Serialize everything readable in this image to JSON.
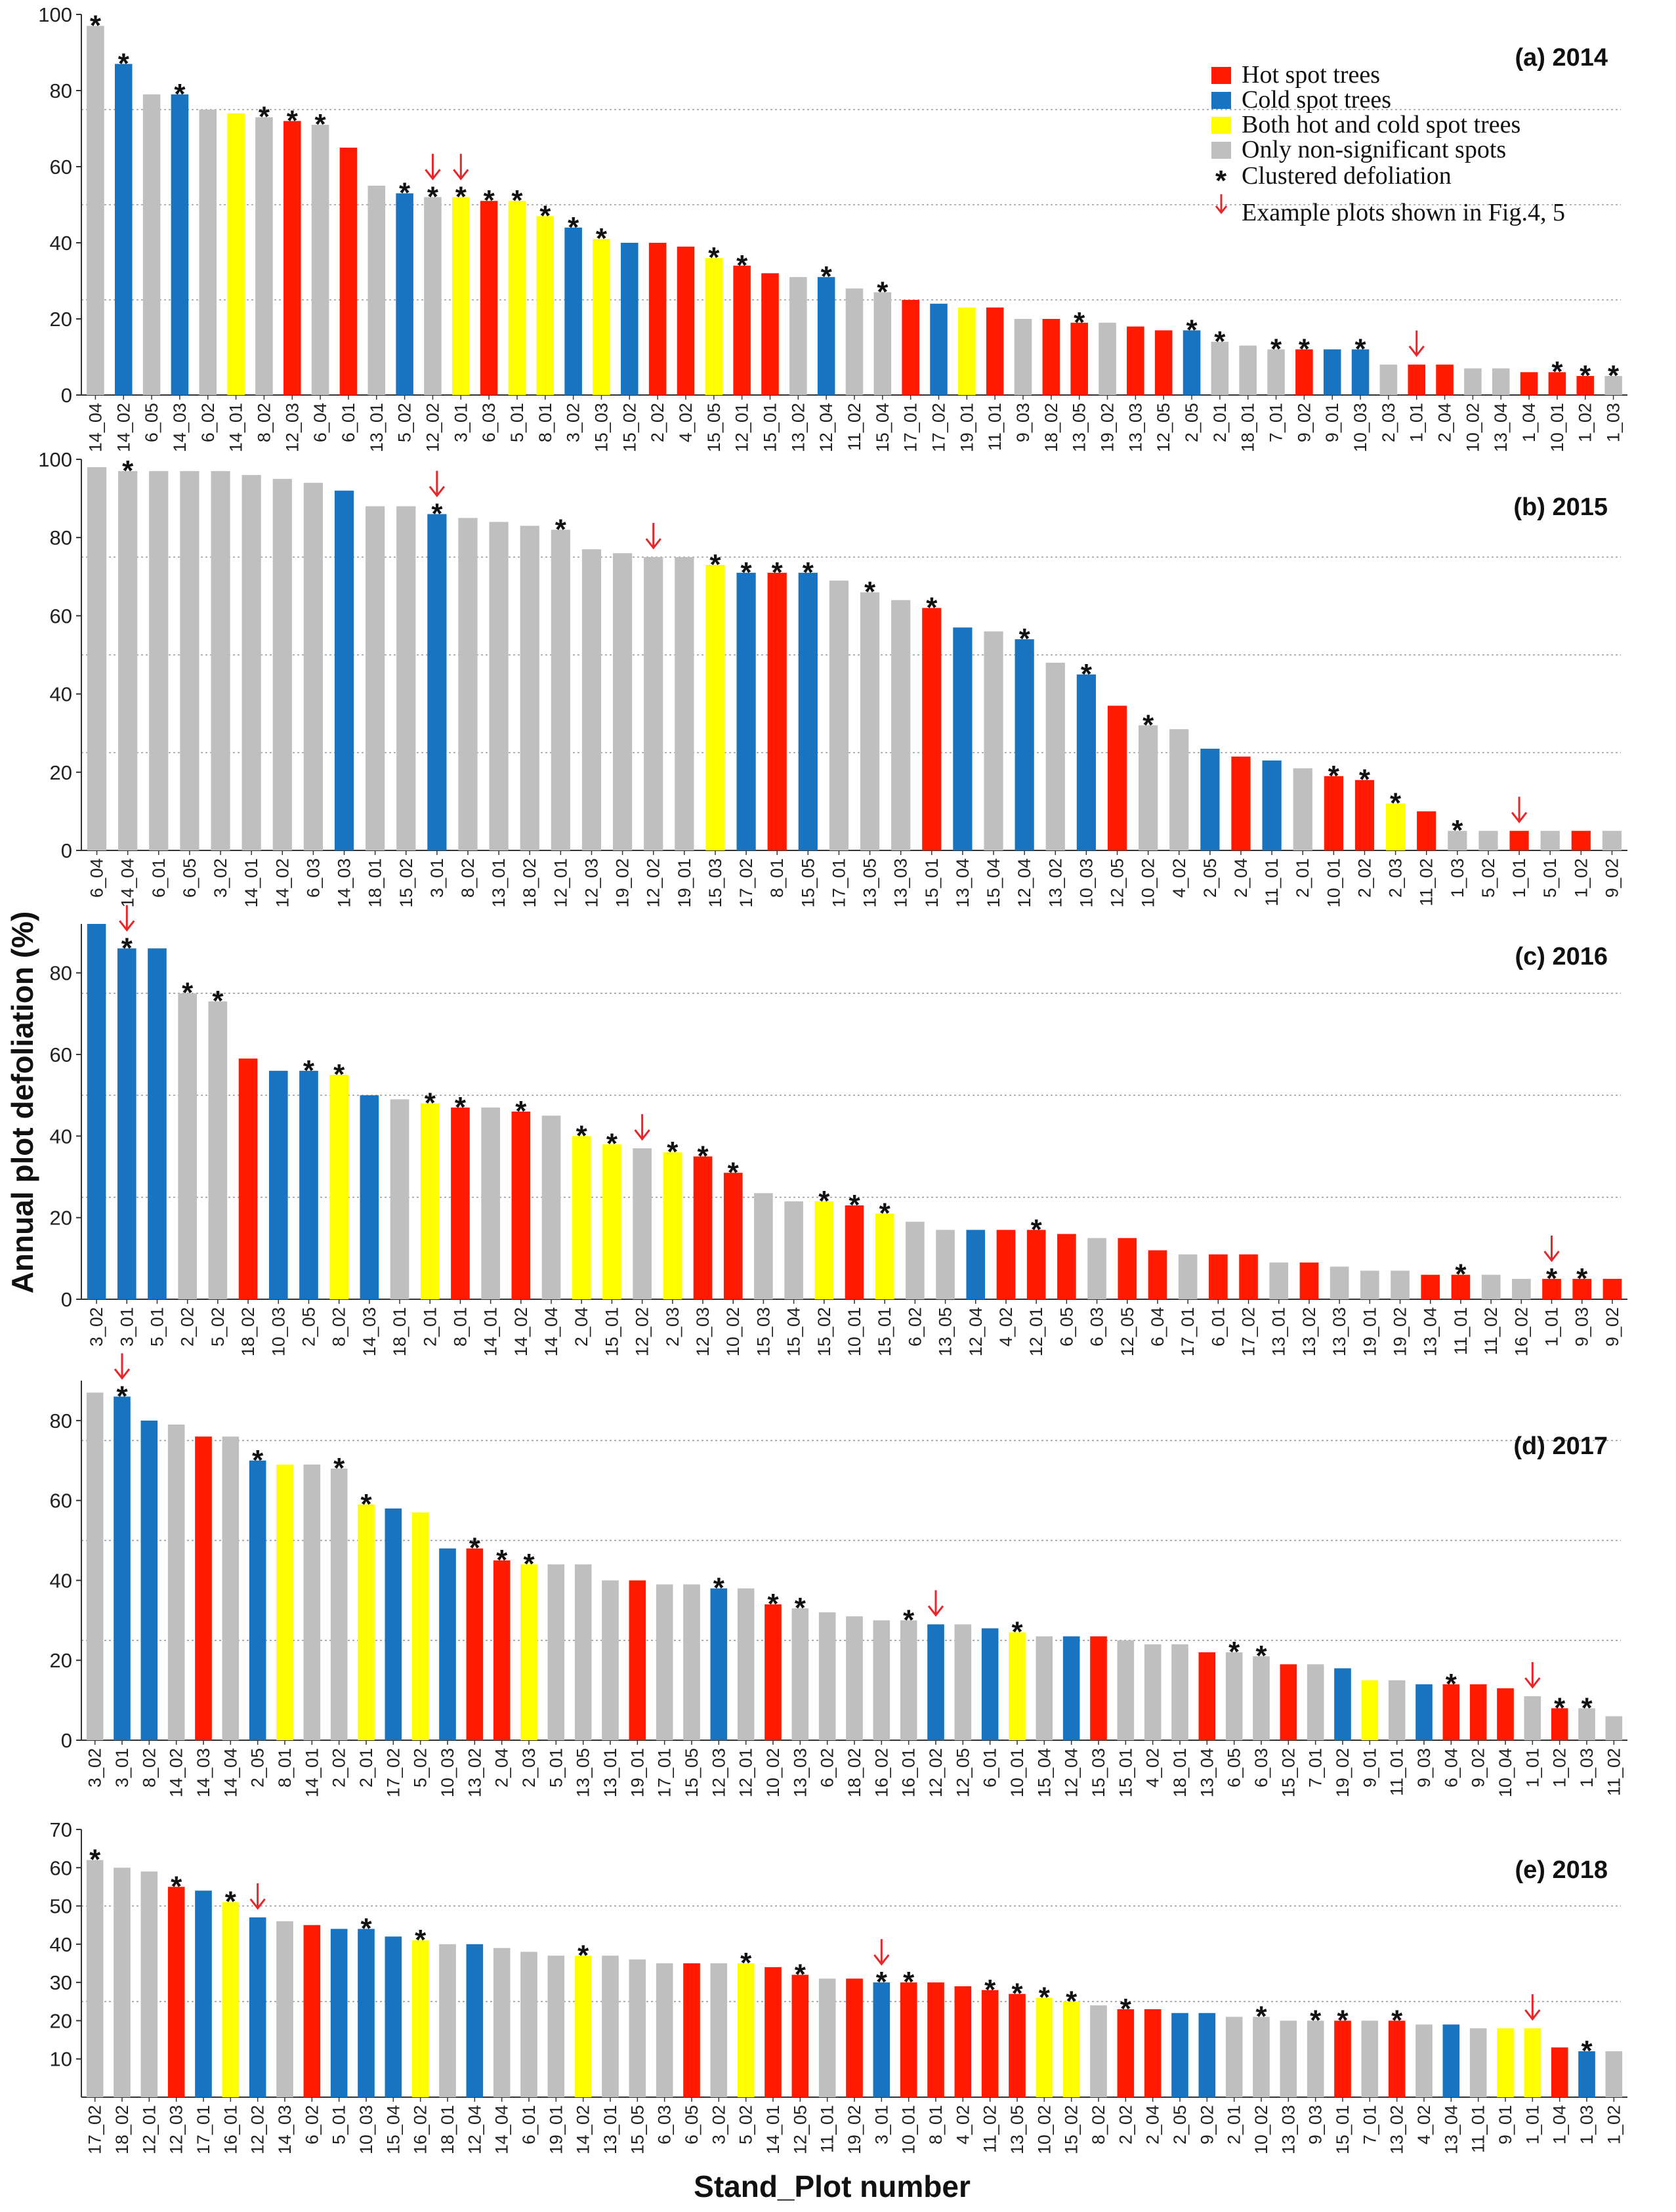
{
  "figure": {
    "ylabel": "Annual plot defoliation (%)",
    "xlabel": "Stand_Plot number"
  },
  "legend": {
    "items": [
      {
        "key": "hot",
        "label": "Hot spot trees",
        "color": "#ff1a00"
      },
      {
        "key": "cold",
        "label": "Cold spot trees",
        "color": "#1874c0"
      },
      {
        "key": "both",
        "label": "Both hot and cold spot trees",
        "color": "#ffff00"
      },
      {
        "key": "none",
        "label": "Only non-significant spots",
        "color": "#bfbfbf"
      }
    ],
    "star_label": "Clustered defoliation",
    "arrow_label": "Example plots shown in Fig.4, 5"
  },
  "colors": {
    "hot": "#ff1a00",
    "cold": "#1874c0",
    "both": "#ffff00",
    "none": "#bfbfbf",
    "arrow": "#e8262a",
    "grid": "#9a9a9a"
  },
  "chart_data": [
    {
      "type": "bar",
      "title": "(a) 2014",
      "xlabel": "Stand_Plot number",
      "ylabel": "Annual plot defoliation (%)",
      "ylim": [
        0,
        100
      ],
      "yticks": [
        0,
        20,
        40,
        60,
        80,
        100
      ],
      "gridlines": [
        25,
        50,
        75
      ],
      "categories": [
        "14_04",
        "14_02",
        "6_05",
        "14_03",
        "6_02",
        "14_01",
        "8_02",
        "12_03",
        "6_04",
        "6_01",
        "13_01",
        "5_02",
        "12_02",
        "3_01",
        "6_03",
        "5_01",
        "8_01",
        "3_02",
        "15_03",
        "15_02",
        "2_02",
        "4_02",
        "15_05",
        "12_01",
        "15_01",
        "13_02",
        "12_04",
        "11_02",
        "15_04",
        "17_01",
        "17_02",
        "19_01",
        "11_01",
        "9_03",
        "18_02",
        "13_05",
        "19_02",
        "13_03",
        "12_05",
        "2_05",
        "2_01",
        "18_01",
        "7_01",
        "9_02",
        "9_01",
        "10_03",
        "2_03",
        "1_01",
        "2_04",
        "10_02",
        "13_04",
        "1_04",
        "10_01",
        "1_02",
        "1_03"
      ],
      "values": [
        97,
        87,
        79,
        79,
        75,
        74,
        73,
        72,
        71,
        65,
        55,
        53,
        52,
        52,
        51,
        51,
        47,
        44,
        41,
        40,
        40,
        39,
        36,
        34,
        32,
        31,
        31,
        28,
        27,
        25,
        24,
        23,
        23,
        20,
        20,
        19,
        19,
        18,
        17,
        17,
        14,
        13,
        12,
        12,
        12,
        12,
        8,
        8,
        8,
        7,
        7,
        6,
        6,
        5,
        5
      ],
      "groups": [
        "none",
        "cold",
        "none",
        "cold",
        "none",
        "both",
        "none",
        "hot",
        "none",
        "hot",
        "none",
        "cold",
        "none",
        "both",
        "hot",
        "both",
        "both",
        "cold",
        "both",
        "cold",
        "hot",
        "hot",
        "both",
        "hot",
        "hot",
        "none",
        "cold",
        "none",
        "none",
        "hot",
        "cold",
        "both",
        "hot",
        "none",
        "hot",
        "hot",
        "none",
        "hot",
        "hot",
        "cold",
        "none",
        "none",
        "none",
        "hot",
        "cold",
        "cold",
        "none",
        "hot",
        "hot",
        "none",
        "none",
        "hot",
        "hot",
        "hot",
        "none"
      ],
      "clustered": [
        "14_04",
        "14_02",
        "14_03",
        "8_02",
        "12_03",
        "6_04",
        "5_02",
        "12_02",
        "3_01",
        "6_03",
        "5_01",
        "8_01",
        "3_02",
        "15_03",
        "15_05",
        "12_01",
        "12_04",
        "15_04",
        "13_05",
        "2_05",
        "2_01",
        "7_01",
        "9_02",
        "10_03",
        "10_01",
        "1_02",
        "1_03"
      ],
      "example_plots": [
        "12_02",
        "3_01",
        "1_01"
      ]
    },
    {
      "type": "bar",
      "title": "(b) 2015",
      "xlabel": "Stand_Plot number",
      "ylabel": "Annual plot defoliation (%)",
      "ylim": [
        0,
        100
      ],
      "yticks": [
        0,
        20,
        40,
        60,
        80,
        100
      ],
      "gridlines": [
        25,
        50,
        75
      ],
      "categories": [
        "6_04",
        "14_04",
        "6_01",
        "6_05",
        "3_02",
        "14_01",
        "14_02",
        "6_03",
        "14_03",
        "18_01",
        "15_02",
        "3_01",
        "8_02",
        "13_01",
        "18_02",
        "12_01",
        "12_03",
        "19_02",
        "12_02",
        "19_01",
        "15_03",
        "17_02",
        "8_01",
        "15_05",
        "17_01",
        "13_05",
        "13_03",
        "15_01",
        "13_04",
        "15_04",
        "12_04",
        "13_02",
        "10_03",
        "12_05",
        "10_02",
        "4_02",
        "2_05",
        "2_04",
        "11_01",
        "2_01",
        "10_01",
        "2_02",
        "2_03",
        "11_02",
        "1_03",
        "5_02",
        "1_01",
        "5_01",
        "1_02",
        "9_02"
      ],
      "values": [
        98,
        97,
        97,
        97,
        97,
        96,
        95,
        94,
        92,
        88,
        88,
        86,
        85,
        84,
        83,
        82,
        77,
        76,
        75,
        75,
        73,
        71,
        71,
        71,
        69,
        66,
        64,
        62,
        57,
        56,
        54,
        48,
        45,
        37,
        32,
        31,
        26,
        24,
        23,
        21,
        19,
        18,
        12,
        10,
        5,
        5,
        5,
        5,
        5,
        5
      ],
      "groups": [
        "none",
        "none",
        "none",
        "none",
        "none",
        "none",
        "none",
        "none",
        "cold",
        "none",
        "none",
        "cold",
        "none",
        "none",
        "none",
        "none",
        "none",
        "none",
        "none",
        "none",
        "both",
        "cold",
        "hot",
        "cold",
        "none",
        "none",
        "none",
        "hot",
        "cold",
        "none",
        "cold",
        "none",
        "cold",
        "hot",
        "none",
        "none",
        "cold",
        "hot",
        "cold",
        "none",
        "hot",
        "hot",
        "both",
        "hot",
        "none",
        "none",
        "hot",
        "none",
        "hot",
        "none"
      ],
      "clustered": [
        "14_04",
        "3_01",
        "12_01",
        "15_03",
        "17_02",
        "8_01",
        "15_05",
        "13_05",
        "15_01",
        "12_04",
        "10_03",
        "10_02",
        "10_01",
        "2_02",
        "2_03",
        "1_03"
      ],
      "example_plots": [
        "3_01",
        "12_02",
        "1_01"
      ]
    },
    {
      "type": "bar",
      "title": "(c) 2016",
      "xlabel": "Stand_Plot number",
      "ylabel": "Annual plot defoliation (%)",
      "ylim": [
        0,
        92
      ],
      "yticks": [
        0,
        20,
        40,
        60,
        80
      ],
      "gridlines": [
        25,
        50,
        75
      ],
      "categories": [
        "3_02",
        "3_01",
        "5_01",
        "2_02",
        "5_02",
        "18_02",
        "10_03",
        "2_05",
        "8_02",
        "14_03",
        "18_01",
        "2_01",
        "8_01",
        "14_01",
        "14_02",
        "14_04",
        "2_04",
        "15_01",
        "12_02",
        "2_03",
        "12_03",
        "10_02",
        "15_03",
        "15_04",
        "15_02",
        "10_01",
        "15_01",
        "6_02",
        "13_05",
        "12_04",
        "4_02",
        "12_01",
        "6_05",
        "6_03",
        "12_05",
        "6_04",
        "17_01",
        "6_01",
        "17_02",
        "13_01",
        "13_02",
        "13_03",
        "19_01",
        "19_02",
        "13_04",
        "11_01",
        "11_02",
        "16_02",
        "1_01",
        "9_03",
        "9_02"
      ],
      "values": [
        92,
        86,
        86,
        75,
        73,
        59,
        56,
        56,
        55,
        50,
        49,
        48,
        47,
        47,
        46,
        45,
        40,
        38,
        37,
        36,
        35,
        31,
        26,
        24,
        24,
        23,
        21,
        19,
        17,
        17,
        17,
        17,
        16,
        15,
        15,
        12,
        11,
        11,
        11,
        9,
        9,
        8,
        7,
        7,
        6,
        6,
        6,
        5,
        5,
        5,
        5
      ],
      "groups": [
        "cold",
        "cold",
        "cold",
        "none",
        "none",
        "hot",
        "cold",
        "cold",
        "both",
        "cold",
        "none",
        "both",
        "hot",
        "none",
        "hot",
        "none",
        "both",
        "both",
        "none",
        "both",
        "hot",
        "hot",
        "none",
        "none",
        "both",
        "hot",
        "both",
        "none",
        "none",
        "cold",
        "hot",
        "hot",
        "hot",
        "none",
        "hot",
        "hot",
        "none",
        "hot",
        "hot",
        "none",
        "hot",
        "none",
        "none",
        "none",
        "hot",
        "hot",
        "none",
        "none",
        "hot",
        "hot",
        "hot"
      ],
      "clustered": [
        "3_01",
        "2_02",
        "5_02",
        "2_05",
        "8_02",
        "2_01",
        "8_01",
        "14_02",
        "2_04",
        "15_01",
        "2_03",
        "12_03",
        "10_02",
        "15_02",
        "10_01",
        "15_01",
        "12_01",
        "11_01",
        "1_01",
        "9_03"
      ],
      "example_plots": [
        "3_01",
        "12_02",
        "1_01"
      ]
    },
    {
      "type": "bar",
      "title": "(d) 2017",
      "xlabel": "Stand_Plot number",
      "ylabel": "Annual plot defoliation (%)",
      "ylim": [
        0,
        90
      ],
      "yticks": [
        0,
        20,
        40,
        60,
        80
      ],
      "gridlines": [
        25,
        50,
        75
      ],
      "categories": [
        "3_02",
        "3_01",
        "8_02",
        "14_02",
        "14_03",
        "14_04",
        "2_05",
        "8_01",
        "14_01",
        "2_02",
        "2_01",
        "17_02",
        "5_02",
        "10_03",
        "13_02",
        "2_04",
        "2_03",
        "5_01",
        "13_05",
        "13_01",
        "19_01",
        "17_01",
        "15_05",
        "12_03",
        "12_01",
        "10_02",
        "13_03",
        "6_02",
        "18_02",
        "16_02",
        "16_01",
        "12_02",
        "12_05",
        "6_01",
        "10_01",
        "15_04",
        "12_04",
        "15_03",
        "15_01",
        "4_02",
        "18_01",
        "13_04",
        "6_05",
        "6_03",
        "15_02",
        "7_01",
        "19_02",
        "9_01",
        "11_01",
        "9_03",
        "6_04",
        "9_02",
        "10_04",
        "1_01",
        "1_02",
        "1_03",
        "11_02"
      ],
      "values": [
        87,
        86,
        80,
        79,
        76,
        76,
        70,
        69,
        69,
        68,
        59,
        58,
        57,
        48,
        48,
        45,
        44,
        44,
        44,
        40,
        40,
        39,
        39,
        38,
        38,
        34,
        33,
        32,
        31,
        30,
        30,
        29,
        29,
        28,
        27,
        26,
        26,
        26,
        25,
        24,
        24,
        22,
        22,
        21,
        19,
        19,
        18,
        15,
        15,
        14,
        14,
        14,
        13,
        11,
        8,
        8,
        6
      ],
      "groups": [
        "none",
        "cold",
        "cold",
        "none",
        "hot",
        "none",
        "cold",
        "both",
        "none",
        "none",
        "both",
        "cold",
        "both",
        "cold",
        "hot",
        "hot",
        "both",
        "none",
        "none",
        "none",
        "hot",
        "none",
        "none",
        "cold",
        "none",
        "hot",
        "none",
        "none",
        "none",
        "none",
        "none",
        "cold",
        "none",
        "cold",
        "both",
        "none",
        "cold",
        "hot",
        "none",
        "none",
        "none",
        "hot",
        "none",
        "none",
        "hot",
        "none",
        "cold",
        "both",
        "none",
        "cold",
        "hot",
        "hot",
        "hot",
        "none",
        "hot",
        "none",
        "none"
      ],
      "clustered": [
        "3_01",
        "2_05",
        "2_02",
        "2_01",
        "13_02",
        "2_04",
        "2_03",
        "12_03",
        "10_02",
        "13_03",
        "16_01",
        "10_01",
        "6_05",
        "6_03",
        "6_04",
        "1_02",
        "1_03"
      ],
      "example_plots": [
        "3_01",
        "12_02",
        "1_01"
      ]
    },
    {
      "type": "bar",
      "title": "(e) 2018",
      "xlabel": "Stand_Plot number",
      "ylabel": "Annual plot defoliation (%)",
      "ylim": [
        0,
        70
      ],
      "yticks": [
        10,
        20,
        30,
        40,
        50,
        60,
        70
      ],
      "gridlines": [
        25,
        50
      ],
      "categories": [
        "17_02",
        "18_02",
        "12_01",
        "12_03",
        "17_01",
        "16_01",
        "12_02",
        "14_03",
        "6_02",
        "5_01",
        "10_03",
        "15_04",
        "16_02",
        "18_01",
        "12_04",
        "14_04",
        "6_01",
        "19_01",
        "14_02",
        "13_01",
        "15_05",
        "6_03",
        "6_05",
        "3_02",
        "5_02",
        "14_01",
        "12_05",
        "11_01",
        "19_02",
        "3_01",
        "10_01",
        "8_01",
        "4_02",
        "11_02",
        "13_05",
        "10_02",
        "15_02",
        "8_02",
        "2_02",
        "2_04",
        "2_05",
        "9_02",
        "2_01",
        "10_02",
        "13_03",
        "9_03",
        "15_01",
        "7_01",
        "13_02",
        "4_02",
        "13_04",
        "11_01",
        "9_01",
        "1_01",
        "1_04",
        "1_03",
        "1_02"
      ],
      "values": [
        62,
        60,
        59,
        55,
        54,
        51,
        47,
        46,
        45,
        44,
        44,
        42,
        41,
        40,
        40,
        39,
        38,
        37,
        37,
        37,
        36,
        35,
        35,
        35,
        35,
        34,
        32,
        31,
        31,
        30,
        30,
        30,
        29,
        28,
        27,
        26,
        25,
        24,
        23,
        23,
        22,
        22,
        21,
        21,
        20,
        20,
        20,
        20,
        20,
        19,
        19,
        18,
        18,
        18,
        13,
        12,
        12
      ],
      "groups": [
        "none",
        "none",
        "none",
        "hot",
        "cold",
        "both",
        "cold",
        "none",
        "hot",
        "cold",
        "cold",
        "cold",
        "both",
        "none",
        "cold",
        "none",
        "none",
        "none",
        "both",
        "none",
        "none",
        "none",
        "hot",
        "none",
        "both",
        "hot",
        "hot",
        "none",
        "hot",
        "cold",
        "hot",
        "hot",
        "hot",
        "hot",
        "hot",
        "both",
        "both",
        "none",
        "hot",
        "hot",
        "cold",
        "cold",
        "none",
        "none",
        "none",
        "none",
        "hot",
        "none",
        "hot",
        "none",
        "cold",
        "none",
        "both",
        "both",
        "hot",
        "cold",
        "none"
      ],
      "clustered": [
        "17_02",
        "12_03",
        "16_01",
        "10_03",
        "16_02",
        "14_02",
        "5_02",
        "12_05",
        "3_01",
        "10_01",
        "11_02",
        "13_05",
        "10_02",
        "15_02",
        "2_02",
        "9_03",
        "15_01",
        "13_02",
        "1_03"
      ],
      "example_plots": [
        "12_02",
        "3_01",
        "1_01"
      ]
    }
  ]
}
